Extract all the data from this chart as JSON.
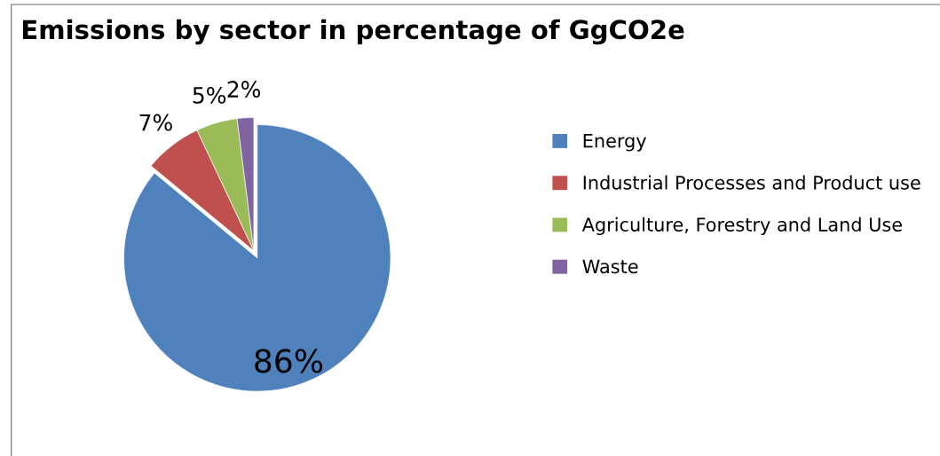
{
  "chart_data": {
    "type": "pie",
    "title": "Emissions by sector in percentage of GgCO2e",
    "categories": [
      "Energy",
      "Industrial Processes and Product use",
      "Agriculture, Forestry and Land Use",
      "Waste"
    ],
    "values": [
      86,
      7,
      5,
      2
    ],
    "colors": [
      "#4f81bd",
      "#c0504d",
      "#9bbb59",
      "#8064a2"
    ],
    "value_labels": [
      "86%",
      "7%",
      "5%",
      "2%"
    ],
    "legend": "right"
  }
}
